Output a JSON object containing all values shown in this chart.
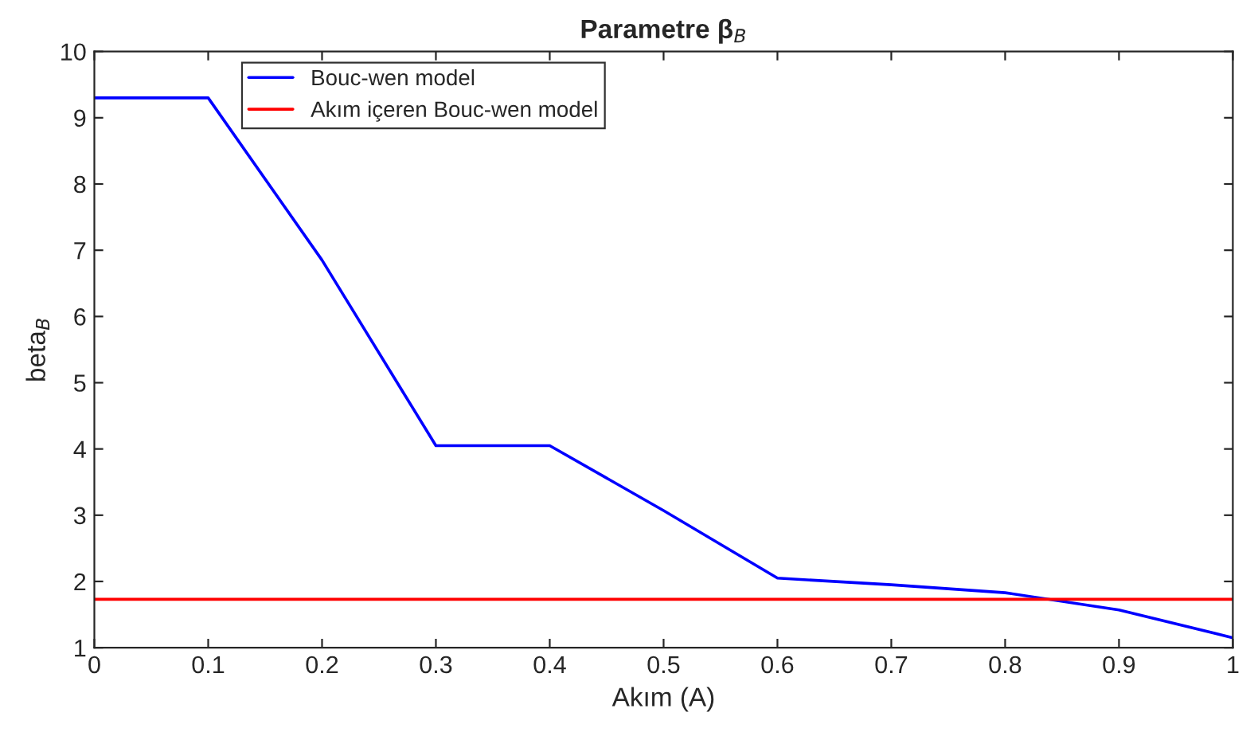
{
  "chart_data": {
    "type": "line",
    "title": "Parametre β$_{B}$",
    "xlabel": "Akım (A)",
    "ylabel": "beta$_{B}$",
    "x": [
      0,
      0.1,
      0.2,
      0.3,
      0.4,
      0.5,
      0.6,
      0.7,
      0.8,
      0.9,
      1
    ],
    "series": [
      {
        "name": "Bouc-wen model",
        "color": "#0000ff",
        "values": [
          9.3,
          9.3,
          6.85,
          4.05,
          4.05,
          3.07,
          2.05,
          1.95,
          1.83,
          1.57,
          1.15
        ]
      },
      {
        "name": "Akım içeren Bouc-wen model",
        "color": "#ff0000",
        "values": [
          1.73,
          1.73,
          1.73,
          1.73,
          1.73,
          1.73,
          1.73,
          1.73,
          1.73,
          1.73,
          1.73
        ]
      }
    ],
    "xlim": [
      0,
      1
    ],
    "ylim": [
      1,
      10
    ],
    "xticks": [
      0,
      0.1,
      0.2,
      0.3,
      0.4,
      0.5,
      0.6,
      0.7,
      0.8,
      0.9,
      1
    ],
    "yticks": [
      1,
      2,
      3,
      4,
      5,
      6,
      7,
      8,
      9,
      10
    ],
    "grid": false,
    "legend": "top left",
    "marker": "none",
    "line_style": "solid"
  }
}
